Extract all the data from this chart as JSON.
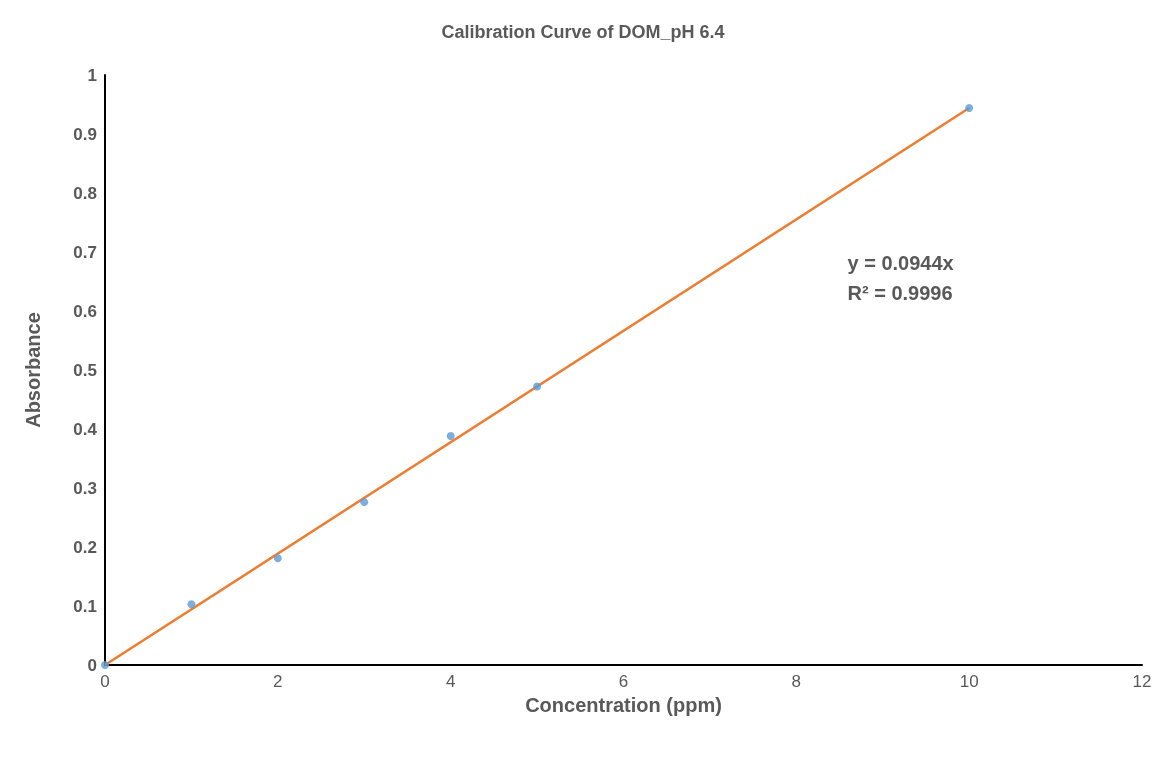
{
  "chart_data": {
    "type": "scatter",
    "title": "Calibration Curve of DOM_pH 6.4",
    "xlabel": "Concentration (ppm)",
    "ylabel": "Absorbance",
    "xlim": [
      0,
      12
    ],
    "xticks": [
      0,
      2,
      4,
      6,
      8,
      10,
      12
    ],
    "ylim": [
      0,
      1
    ],
    "yticks": [
      0,
      0.1,
      0.2,
      0.3,
      0.4,
      0.5,
      0.6,
      0.7,
      0.8,
      0.9,
      1
    ],
    "grid": false,
    "marker": "circle",
    "series": [
      {
        "color": "#5b9bd5",
        "x": [
          0,
          1,
          2,
          3,
          4,
          5,
          10
        ],
        "values": [
          0,
          0.103,
          0.181,
          0.276,
          0.388,
          0.472,
          0.944
        ]
      },
      {
        "type": "line",
        "color": "#ed7d31",
        "x": [
          0,
          10
        ],
        "values": [
          0,
          0.944
        ],
        "marker": "none"
      }
    ],
    "annotations": [
      "y = 0.0944x",
      "R² = 0.9996"
    ]
  }
}
